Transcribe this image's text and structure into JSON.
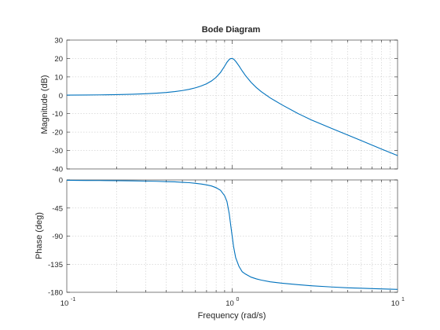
{
  "figure": {
    "title": "Bode Diagram",
    "xlabel": "Frequency  (rad/s)"
  },
  "chart_data": [
    {
      "type": "line",
      "title": "Bode Diagram",
      "ylabel": "Magnitude (dB)",
      "xscale": "log",
      "xlim": [
        0.1,
        10
      ],
      "ylim": [
        -40,
        30
      ],
      "yticks": [
        -40,
        -30,
        -20,
        -10,
        0,
        10,
        20,
        30
      ],
      "grid": true,
      "line_color": "#0072BD",
      "series": [
        {
          "x": [
            0.1,
            0.13,
            0.17,
            0.2,
            0.25,
            0.3,
            0.35,
            0.4,
            0.45,
            0.5,
            0.55,
            0.6,
            0.65,
            0.7,
            0.75,
            0.8,
            0.85,
            0.9,
            0.93,
            0.96,
            0.98,
            1.0,
            1.02,
            1.05,
            1.1,
            1.15,
            1.2,
            1.3,
            1.4,
            1.5,
            1.7,
            2.0,
            2.5,
            3.0,
            4.0,
            5.0,
            6.0,
            7.0,
            8.0,
            10.0
          ],
          "y": [
            0.09,
            0.15,
            0.25,
            0.35,
            0.56,
            0.82,
            1.14,
            1.53,
            2.01,
            2.58,
            3.26,
            4.08,
            5.07,
            6.28,
            7.8,
            9.78,
            12.4,
            15.81,
            17.94,
            19.49,
            19.96,
            20.0,
            19.65,
            18.47,
            15.93,
            13.25,
            10.86,
            7.05,
            4.2,
            1.98,
            -1.45,
            -5.19,
            -9.91,
            -13.31,
            -18.0,
            -21.59,
            -24.54,
            -27.04,
            -29.2,
            -32.76
          ]
        }
      ]
    },
    {
      "type": "line",
      "ylabel": "Phase (deg)",
      "xscale": "log",
      "xlim": [
        0.1,
        10
      ],
      "ylim": [
        -180,
        0
      ],
      "yticks": [
        -180,
        -135,
        -90,
        -45,
        0
      ],
      "grid": true,
      "line_color": "#0072BD",
      "series": [
        {
          "x": [
            0.1,
            0.13,
            0.17,
            0.2,
            0.25,
            0.3,
            0.35,
            0.4,
            0.45,
            0.5,
            0.55,
            0.6,
            0.65,
            0.7,
            0.75,
            0.8,
            0.85,
            0.9,
            0.93,
            0.96,
            0.98,
            1.0,
            1.02,
            1.05,
            1.1,
            1.15,
            1.2,
            1.3,
            1.4,
            1.5,
            1.7,
            2.0,
            2.5,
            3.0,
            4.0,
            5.0,
            6.0,
            7.0,
            8.0,
            10.0
          ],
          "y": [
            -0.6,
            -0.8,
            -1.0,
            -1.2,
            -1.5,
            -1.9,
            -2.2,
            -2.7,
            -3.1,
            -3.8,
            -4.4,
            -5.4,
            -6.5,
            -7.9,
            -9.7,
            -12.5,
            -16.6,
            -25.3,
            -34.6,
            -54.2,
            -72.6,
            -90.0,
            -107.2,
            -124.6,
            -138.7,
            -147.1,
            -150.6,
            -155.7,
            -158.5,
            -160.5,
            -163.2,
            -165.4,
            -167.8,
            -169.5,
            -171.5,
            -172.8,
            -173.5,
            -174.1,
            -174.6,
            -175.3
          ]
        }
      ]
    }
  ]
}
